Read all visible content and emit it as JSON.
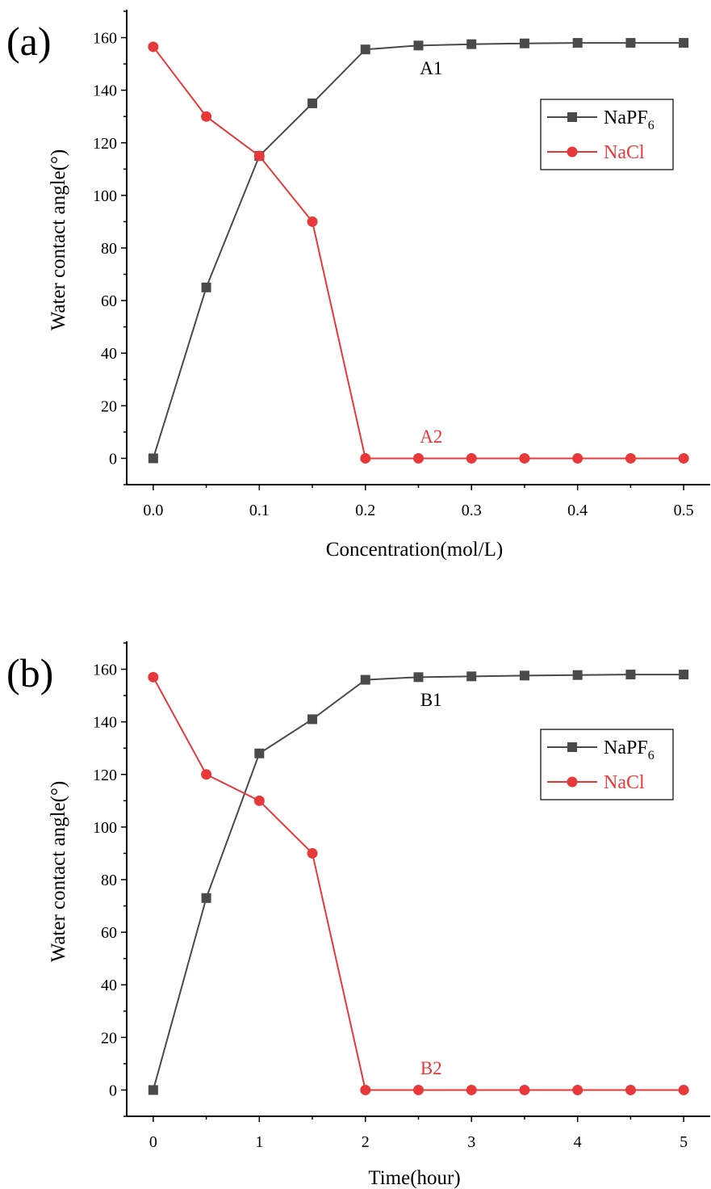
{
  "colors": {
    "napf6": "#4a4a4a",
    "nacl": "#e8393a",
    "axis": "#000000"
  },
  "chart_data": [
    {
      "type": "line",
      "panel_label": "(a)",
      "xlabel": "Concentration(mol/L)",
      "ylabel": "Water contact angle(°)",
      "xlim": [
        -0.025,
        0.525
      ],
      "ylim": [
        -10,
        170
      ],
      "xticks": [
        0.0,
        0.1,
        0.2,
        0.3,
        0.4,
        0.5
      ],
      "xtick_labels": [
        "0.0",
        "0.1",
        "0.2",
        "0.3",
        "0.4",
        "0.5"
      ],
      "yticks": [
        0,
        20,
        40,
        60,
        80,
        100,
        120,
        140,
        160
      ],
      "ytick_labels": [
        "0",
        "20",
        "40",
        "60",
        "80",
        "100",
        "120",
        "140",
        "160"
      ],
      "x": [
        0.0,
        0.05,
        0.1,
        0.15,
        0.2,
        0.25,
        0.3,
        0.35,
        0.4,
        0.45,
        0.5
      ],
      "series": [
        {
          "name": "NaPF6",
          "legend_base": "NaPF",
          "legend_sub": "6",
          "marker": "square",
          "color": "#4a4a4a",
          "values": [
            0,
            65,
            115,
            135,
            155.5,
            157,
            157.5,
            157.8,
            158,
            158,
            158
          ]
        },
        {
          "name": "NaCl",
          "legend_base": "NaCl",
          "legend_sub": "",
          "marker": "circle",
          "color": "#e8393a",
          "values": [
            156.5,
            130,
            115,
            90,
            0,
            0,
            0,
            0,
            0,
            0,
            0
          ]
        }
      ],
      "annotations": [
        {
          "text": "A1",
          "x": 0.262,
          "y": 146,
          "color": "#000000"
        },
        {
          "text": "A2",
          "x": 0.262,
          "y": 6,
          "color": "#e8393a"
        }
      ],
      "legend_position": "top-right"
    },
    {
      "type": "line",
      "panel_label": "(b)",
      "xlabel": "Time(hour)",
      "ylabel": "Water contact angle(°)",
      "xlim": [
        -0.25,
        5.25
      ],
      "ylim": [
        -10,
        170
      ],
      "xticks": [
        0,
        1,
        2,
        3,
        4,
        5
      ],
      "xtick_labels": [
        "0",
        "1",
        "2",
        "3",
        "4",
        "5"
      ],
      "yticks": [
        0,
        20,
        40,
        60,
        80,
        100,
        120,
        140,
        160
      ],
      "ytick_labels": [
        "0",
        "20",
        "40",
        "60",
        "80",
        "100",
        "120",
        "140",
        "160"
      ],
      "x": [
        0,
        0.5,
        1,
        1.5,
        2,
        2.5,
        3,
        3.5,
        4,
        4.5,
        5
      ],
      "series": [
        {
          "name": "NaPF6",
          "legend_base": "NaPF",
          "legend_sub": "6",
          "marker": "square",
          "color": "#4a4a4a",
          "values": [
            0,
            73,
            128,
            141,
            156,
            157,
            157.3,
            157.6,
            157.8,
            158,
            158
          ]
        },
        {
          "name": "NaCl",
          "legend_base": "NaCl",
          "legend_sub": "",
          "marker": "circle",
          "color": "#e8393a",
          "values": [
            157,
            120,
            110,
            90,
            0,
            0,
            0,
            0,
            0,
            0,
            0
          ]
        }
      ],
      "annotations": [
        {
          "text": "B1",
          "x": 2.62,
          "y": 146,
          "color": "#000000"
        },
        {
          "text": "B2",
          "x": 2.62,
          "y": 6,
          "color": "#e8393a"
        }
      ],
      "legend_position": "top-right"
    }
  ]
}
